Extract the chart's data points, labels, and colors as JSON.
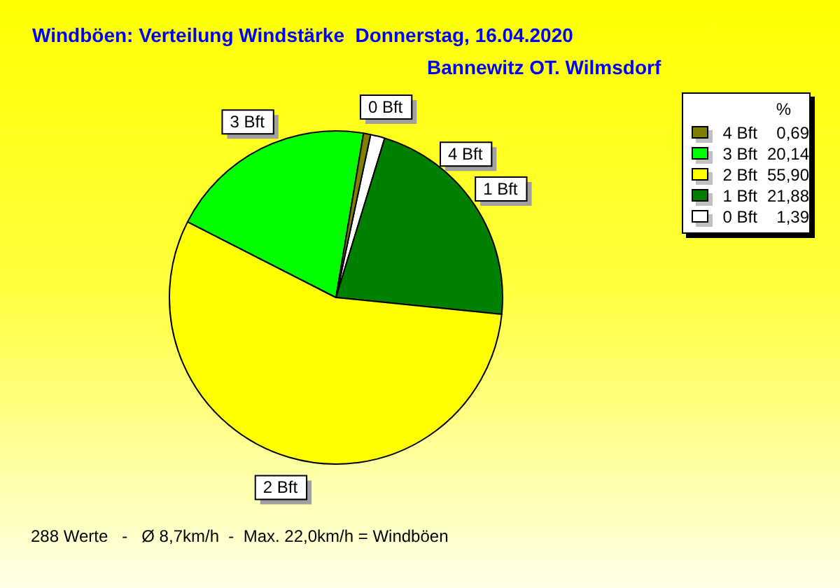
{
  "chart_data": {
    "type": "pie",
    "title": "Windböen: Verteilung Windstärke  Donnerstag, 16.04.2020",
    "subtitle": "Bannewitz OT. Wilmsdorf",
    "categories": [
      "4 Bft",
      "3 Bft",
      "2 Bft",
      "1 Bft",
      "0 Bft"
    ],
    "values": [
      0.69,
      20.14,
      55.9,
      21.88,
      1.39
    ],
    "value_labels": [
      "0,69",
      "20,14",
      "55,90",
      "21,88",
      "1,39"
    ],
    "colors": [
      "#808000",
      "#00ff00",
      "#ffff00",
      "#008000",
      "#ffffff"
    ],
    "legend": "top right",
    "legend_title": "%",
    "annotations": [
      "288 Werte   -   Ø 8,7km/h  -  Max. 22,0km/h = Windböen"
    ]
  }
}
